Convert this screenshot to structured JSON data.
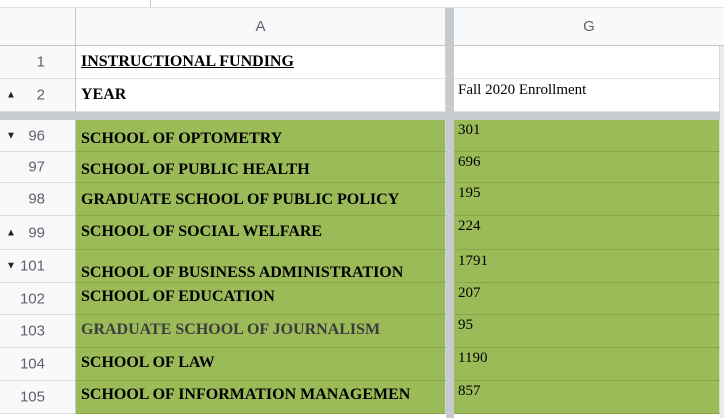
{
  "columns": {
    "corner": "",
    "a": "A",
    "g": "G"
  },
  "frozen_rows": [
    {
      "num": "1",
      "arrow": "",
      "a": "INSTRUCTIONAL FUNDING",
      "g": ""
    },
    {
      "num": "2",
      "arrow": "up",
      "a": "YEAR",
      "g": "Fall 2020 Enrollment"
    }
  ],
  "rows": [
    {
      "num": "96",
      "arrow": "down",
      "a": "SCHOOL OF OPTOMETRY",
      "g": "301"
    },
    {
      "num": "97",
      "arrow": "",
      "a": "SCHOOL OF PUBLIC HEALTH",
      "g": "696"
    },
    {
      "num": "98",
      "arrow": "",
      "a": "GRADUATE SCHOOL OF PUBLIC POLICY",
      "g": "195"
    },
    {
      "num": "99",
      "arrow": "up",
      "a": "SCHOOL OF SOCIAL WELFARE",
      "g": "224"
    },
    {
      "num": "101",
      "arrow": "down",
      "a": "SCHOOL OF BUSINESS ADMINISTRATION",
      "g": "1791"
    },
    {
      "num": "102",
      "arrow": "",
      "a": "SCHOOL OF EDUCATION",
      "g": "207"
    },
    {
      "num": "103",
      "arrow": "",
      "a": "GRADUATE SCHOOL OF JOURNALISM",
      "g": "95"
    },
    {
      "num": "104",
      "arrow": "",
      "a": "SCHOOL OF LAW",
      "g": "1190"
    },
    {
      "num": "105",
      "arrow": "",
      "a": "SCHOOL OF INFORMATION MANAGEMEN",
      "g": "857"
    }
  ],
  "colors": {
    "highlight": "#9bbb59",
    "header_bg": "#f8f9fa"
  },
  "icons": {
    "up": "collapse-arrow-up-icon",
    "down": "expand-arrow-down-icon"
  }
}
